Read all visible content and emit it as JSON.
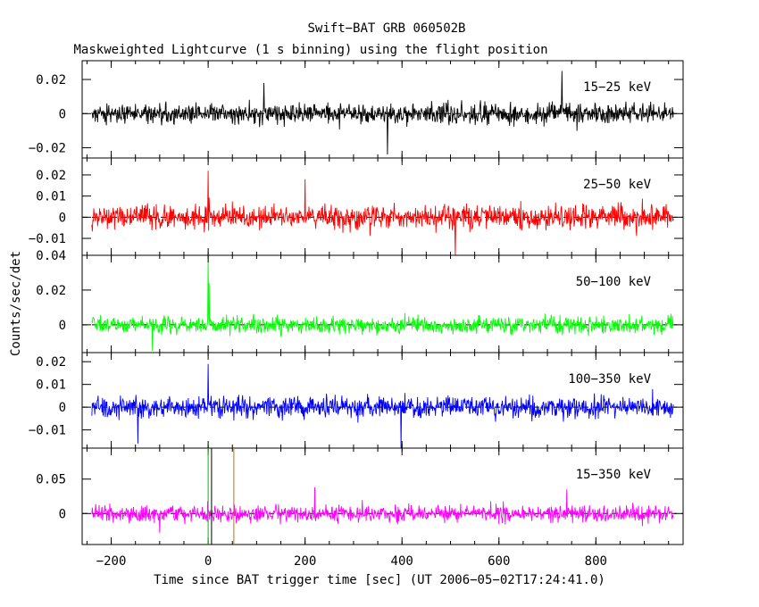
{
  "chart_data": {
    "type": "line",
    "title": "Swift−BAT GRB 060502B",
    "subtitle": "Maskweighted Lightcurve (1 s binning) using the flight position",
    "xlabel": "Time since BAT trigger time [sec] (UT 2006−05−02T17:24:41.0)",
    "ylabel": "Counts/sec/det",
    "xlim": [
      -260,
      980
    ],
    "x_range": [
      -240,
      960
    ],
    "x_ticks": [
      -200,
      0,
      200,
      400,
      600,
      800
    ],
    "x_tick_labels": [
      "−200",
      "0",
      "200",
      "400",
      "600",
      "800"
    ],
    "markers": [
      {
        "x": 0,
        "color": "#00c000"
      },
      {
        "x": 7,
        "color": "#000000"
      },
      {
        "x": 53,
        "color": "#d07000"
      }
    ],
    "panels": [
      {
        "name": "15−25 keV",
        "color": "#000000",
        "ylim": [
          -0.026,
          0.031
        ],
        "ticks": [
          -0.02,
          0,
          0.02
        ],
        "tick_labels": [
          "−0.02",
          "0",
          "0.02"
        ],
        "noise_sigma": 0.0055,
        "spikes": [
          {
            "x": 370,
            "y": -0.024
          },
          {
            "x": 730,
            "y": 0.025
          },
          {
            "x": 115,
            "y": 0.018
          }
        ]
      },
      {
        "name": "25−50 keV",
        "color": "#ff0000",
        "ylim": [
          -0.018,
          0.028
        ],
        "ticks": [
          -0.01,
          0,
          0.01,
          0.02
        ],
        "tick_labels": [
          "−0.01",
          "0",
          "0.01",
          "0.02"
        ],
        "noise_sigma": 0.0052,
        "spikes": [
          {
            "x": 0,
            "y": 0.022
          },
          {
            "x": 510,
            "y": -0.018
          },
          {
            "x": 200,
            "y": 0.018
          }
        ]
      },
      {
        "name": "50−100 keV",
        "color": "#00ff00",
        "ylim": [
          -0.016,
          0.04
        ],
        "ticks": [
          0,
          0.02,
          0.04
        ],
        "tick_labels": [
          "0",
          "0.02",
          "0.04"
        ],
        "noise_sigma": 0.0043,
        "spikes": [
          {
            "x": 0,
            "y": 0.04
          },
          {
            "x": 2,
            "y": 0.024
          },
          {
            "x": -115,
            "y": -0.015
          }
        ]
      },
      {
        "name": "100−350 keV",
        "color": "#0000ff",
        "ylim": [
          -0.018,
          0.024
        ],
        "ticks": [
          -0.01,
          0,
          0.01,
          0.02
        ],
        "tick_labels": [
          "−0.01",
          "0",
          "0.01",
          "0.02"
        ],
        "noise_sigma": 0.0042,
        "spikes": [
          {
            "x": 0,
            "y": 0.019
          },
          {
            "x": 398,
            "y": -0.018
          },
          {
            "x": -145,
            "y": -0.016
          }
        ]
      },
      {
        "name": "15−350 keV",
        "color": "#ff00ff",
        "ylim": [
          -0.045,
          0.095
        ],
        "ticks": [
          0,
          0.05
        ],
        "tick_labels": [
          "0",
          "0.05"
        ],
        "noise_sigma": 0.0105,
        "spikes": [
          {
            "x": 220,
            "y": 0.038
          },
          {
            "x": 740,
            "y": 0.035
          },
          {
            "x": -100,
            "y": -0.028
          }
        ]
      }
    ]
  }
}
